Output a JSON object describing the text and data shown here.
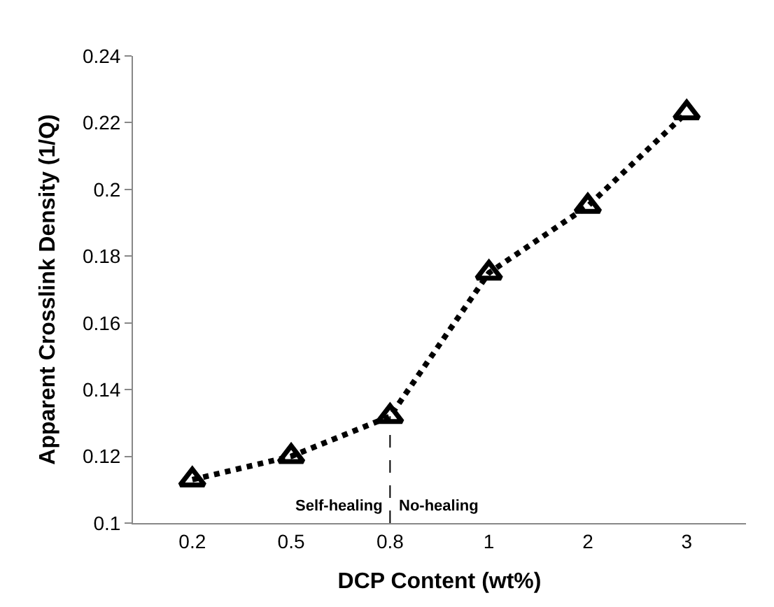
{
  "chart_data": {
    "type": "line",
    "xlabel": "DCP Content (wt%)",
    "ylabel": "Apparent Crosslink Density (1/Q)",
    "categories": [
      "0.2",
      "0.5",
      "0.8",
      "1",
      "2",
      "3"
    ],
    "series": [
      {
        "color": "#000000",
        "values": [
          0.113,
          0.12,
          0.132,
          0.175,
          0.195,
          0.223
        ]
      }
    ],
    "ylim": [
      0.1,
      0.24
    ],
    "yticks": [
      0.1,
      0.12,
      0.14,
      0.16,
      0.18,
      0.2,
      0.22,
      0.24
    ],
    "marker": "triangle",
    "line_style": "dotted",
    "legend": false,
    "ref_lines": [
      {
        "axis": "x",
        "value": "0.8",
        "color": "#000000",
        "line_style": "dashed"
      }
    ],
    "annotations": [
      {
        "text": "Self-healing",
        "x": "0.8",
        "y": 0.105
      },
      {
        "text": "No-healing",
        "x": "0.8",
        "y": 0.105
      }
    ]
  }
}
